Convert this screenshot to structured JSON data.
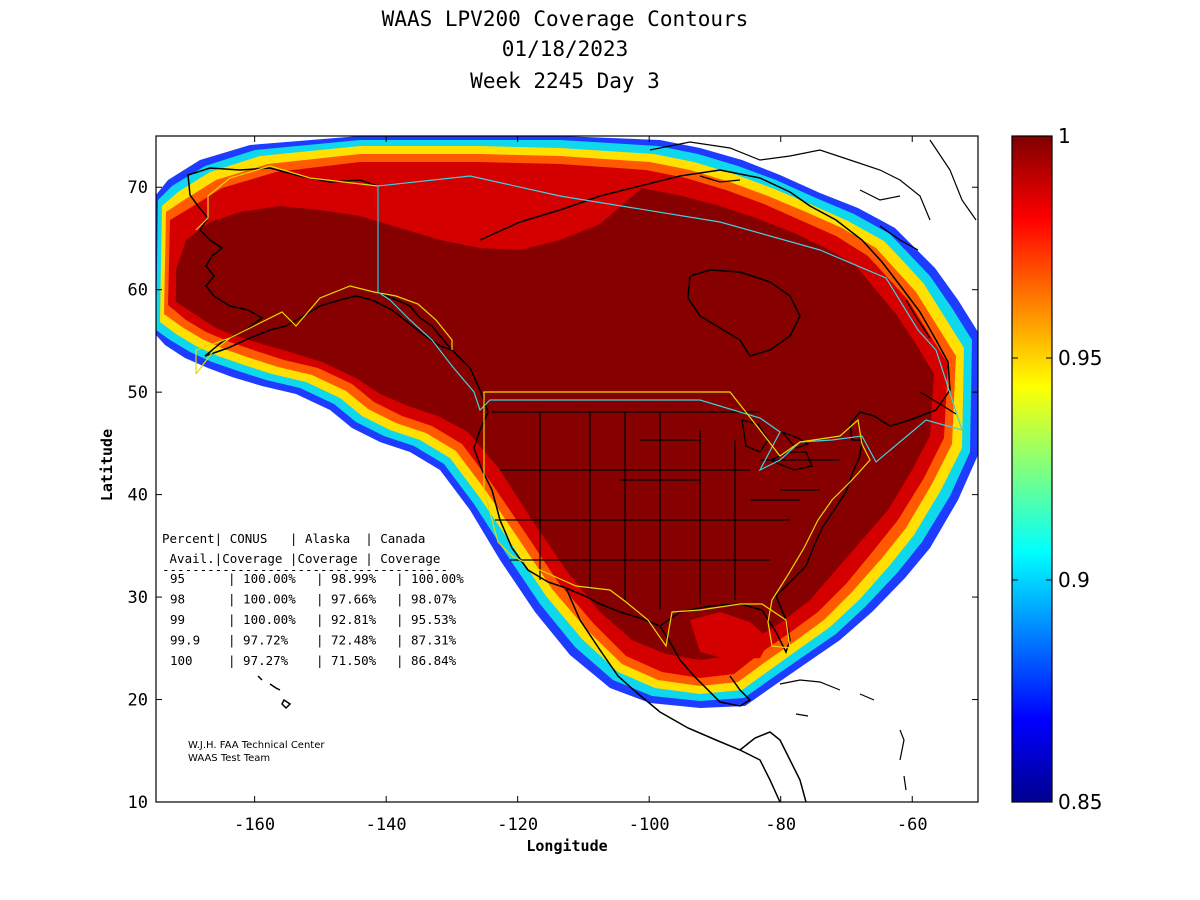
{
  "title": {
    "line1": "WAAS LPV200 Coverage Contours",
    "line2": "01/18/2023",
    "line3": "Week 2245 Day 3"
  },
  "chart_data": {
    "type": "heatmap",
    "xlabel": "Longitude",
    "ylabel": "Latitude",
    "xlim": [
      -175,
      -50
    ],
    "ylim": [
      10,
      75
    ],
    "x_ticks": [
      "-160",
      "-140",
      "-120",
      "-100",
      "-80",
      "-60"
    ],
    "y_ticks": [
      "10",
      "20",
      "30",
      "40",
      "50",
      "60",
      "70"
    ],
    "colorbar": {
      "min": 0.85,
      "max": 1,
      "ticks": [
        "0.85",
        "0.9",
        "0.95",
        "1"
      ],
      "colormap": "jet"
    },
    "coverage_table": {
      "header1": "Percent| CONUS   | Alaska  | Canada",
      "header2": " Avail.|Coverage |Coverage | Coverage",
      "separator": "--------------------------------------",
      "rows": [
        {
          "percent": "95",
          "conus": "100.00%",
          "alaska": "98.99%",
          "canada": "100.00%"
        },
        {
          "percent": "98",
          "conus": "100.00%",
          "alaska": "97.66%",
          "canada": "98.07%"
        },
        {
          "percent": "99",
          "conus": "100.00%",
          "alaska": "92.81%",
          "canada": "95.53%"
        },
        {
          "percent": "99.9",
          "conus": "97.72%",
          "alaska": "72.48%",
          "canada": "87.31%"
        },
        {
          "percent": "100",
          "conus": "97.27%",
          "alaska": "71.50%",
          "canada": "86.84%"
        }
      ]
    },
    "credit": {
      "line1": "W.J.H. FAA Technical Center",
      "line2": "WAAS Test Team"
    }
  },
  "colors": {
    "dark_red": "#800000",
    "red": "#cc0000",
    "orange": "#ff8000",
    "yellow": "#ffff00",
    "cyan": "#00ffff",
    "blue": "#0000ff",
    "service_boundary_yellow": "#e8d800",
    "service_boundary_cyan": "#40d0e0"
  }
}
